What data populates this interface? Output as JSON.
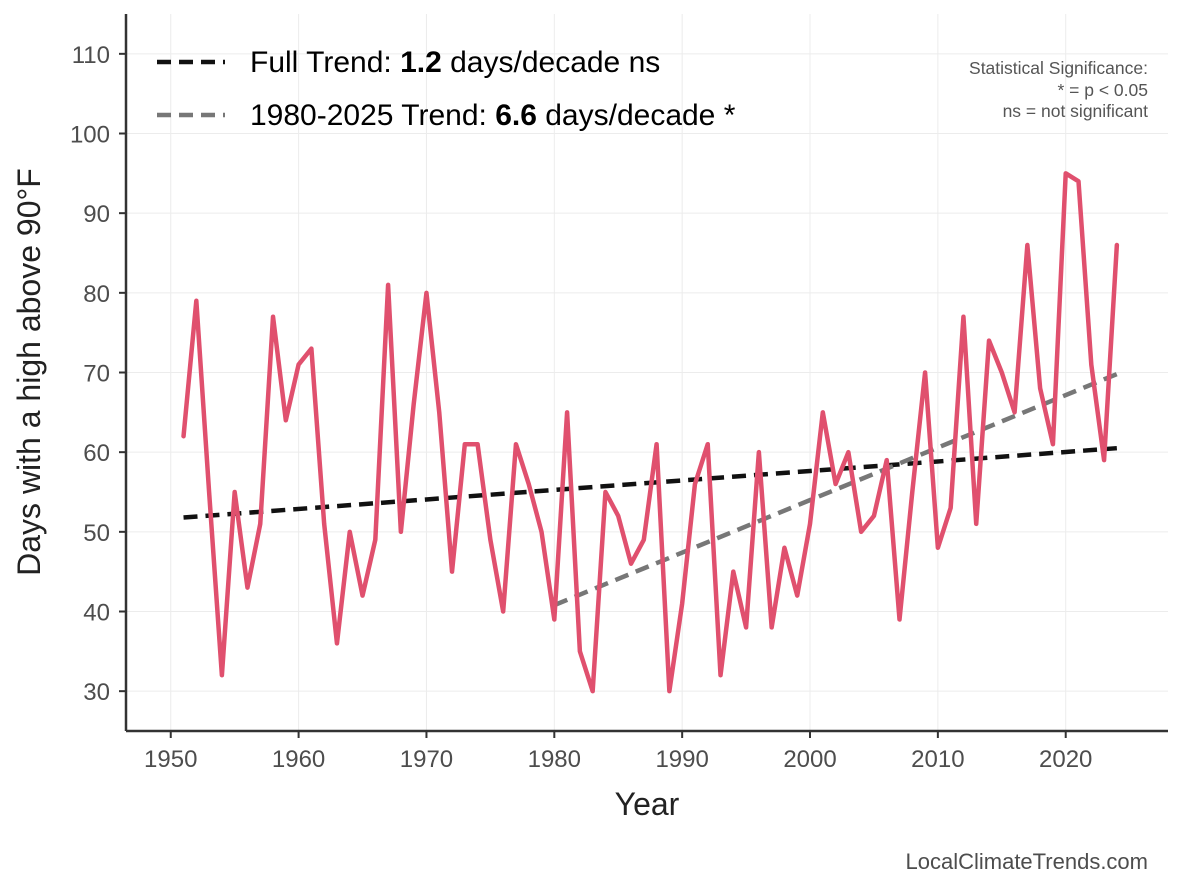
{
  "chart_data": {
    "type": "line",
    "title": "",
    "xlabel": "Year",
    "ylabel": "Days with a high above 90°F",
    "xlim": [
      1946.5,
      2028
    ],
    "ylim": [
      25,
      115
    ],
    "xticks": [
      1950,
      1960,
      1970,
      1980,
      1990,
      2000,
      2010,
      2020
    ],
    "yticks": [
      30,
      40,
      50,
      60,
      70,
      80,
      90,
      100,
      110
    ],
    "grid": true,
    "series": [
      {
        "name": "Days with a high above 90°F",
        "color": "#e0506e",
        "x": [
          1951,
          1952,
          1953,
          1954,
          1955,
          1956,
          1957,
          1958,
          1959,
          1960,
          1961,
          1962,
          1963,
          1964,
          1965,
          1966,
          1967,
          1968,
          1969,
          1970,
          1971,
          1972,
          1973,
          1974,
          1975,
          1976,
          1977,
          1978,
          1979,
          1980,
          1981,
          1982,
          1983,
          1984,
          1985,
          1986,
          1987,
          1988,
          1989,
          1990,
          1991,
          1992,
          1993,
          1994,
          1995,
          1996,
          1997,
          1998,
          1999,
          2000,
          2001,
          2002,
          2003,
          2004,
          2005,
          2006,
          2007,
          2008,
          2009,
          2010,
          2011,
          2012,
          2013,
          2014,
          2015,
          2016,
          2017,
          2018,
          2019,
          2020,
          2021,
          2022,
          2023,
          2024
        ],
        "values": [
          62,
          79,
          55,
          32,
          55,
          43,
          51,
          77,
          64,
          71,
          73,
          51,
          36,
          50,
          42,
          49,
          81,
          50,
          66,
          80,
          65,
          45,
          61,
          61,
          49,
          40,
          61,
          56,
          50,
          39,
          65,
          35,
          30,
          55,
          52,
          46,
          49,
          61,
          30,
          41,
          56,
          61,
          32,
          45,
          38,
          60,
          38,
          48,
          42,
          51,
          65,
          56,
          60,
          50,
          52,
          59,
          39,
          55,
          70,
          48,
          53,
          77,
          51,
          74,
          70,
          65,
          86,
          68,
          61,
          95,
          94,
          71,
          59,
          86
        ]
      }
    ],
    "trends": [
      {
        "name": "Full Trend",
        "color": "#111111",
        "x": [
          1951,
          2024
        ],
        "y": [
          51.8,
          60.5
        ]
      },
      {
        "name": "1980-2025 Trend",
        "color": "#777777",
        "x": [
          1980,
          2024
        ],
        "y": [
          40.8,
          69.8
        ]
      }
    ],
    "legend": {
      "position": "top-left",
      "entries": [
        {
          "prefix": "Full Trend: ",
          "value": "1.2",
          "suffix": " days/decade ns",
          "color": "#111111"
        },
        {
          "prefix": "1980-2025 Trend: ",
          "value": "6.6",
          "suffix": " days/decade *",
          "color": "#777777"
        }
      ]
    },
    "annotations": {
      "significance_lines": [
        "Statistical Significance:",
        "* = p < 0.05",
        "ns = not significant"
      ]
    }
  },
  "credit": "LocalClimateTrends.com"
}
